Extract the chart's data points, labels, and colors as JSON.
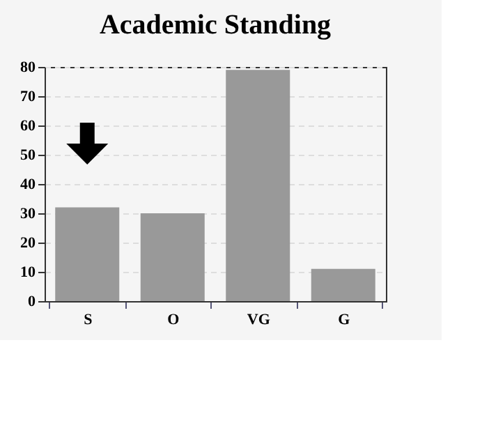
{
  "chart_data": {
    "type": "bar",
    "title": "Academic Standing",
    "categories": [
      "S",
      "O",
      "VG",
      "G"
    ],
    "values": [
      32,
      30,
      79,
      11
    ],
    "color": "#999999",
    "ylim": [
      0,
      80
    ],
    "yticks": [
      0,
      10,
      20,
      30,
      40,
      50,
      60,
      70,
      80
    ],
    "grid": "y"
  }
}
